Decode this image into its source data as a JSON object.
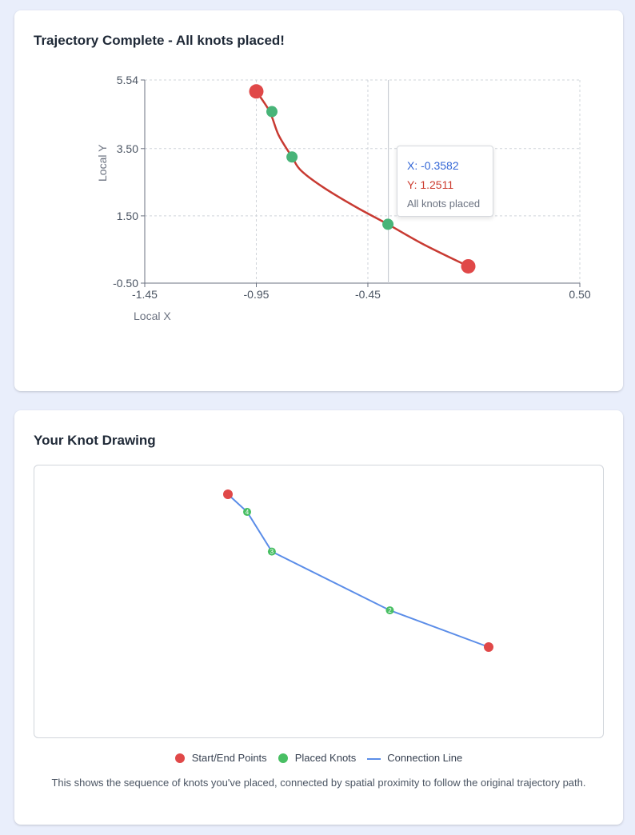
{
  "trajectory_card": {
    "title": "Trajectory Complete - All knots placed!",
    "tooltip": {
      "x_text": "X: -0.3582",
      "y_text": "Y: 1.2511",
      "note": "All knots placed"
    }
  },
  "chart_data": {
    "type": "line",
    "xlabel": "Local X",
    "ylabel": "Local Y",
    "xlim": [
      -1.45,
      0.5
    ],
    "ylim": [
      -0.5,
      5.54
    ],
    "x_ticks": [
      -1.45,
      -0.95,
      -0.45,
      0.5
    ],
    "x_tick_labels": [
      "-1.45",
      "-0.95",
      "-0.45",
      "0.50"
    ],
    "y_ticks": [
      -0.5,
      1.5,
      3.5,
      5.54
    ],
    "y_tick_labels": [
      "-0.50",
      "1.50",
      "3.50",
      "5.54"
    ],
    "grid": true,
    "trajectory": {
      "x": [
        -0.95,
        -0.89,
        -0.85,
        -0.79,
        -0.75,
        -0.65,
        -0.5,
        -0.36,
        -0.2,
        0.0
      ],
      "y": [
        5.2,
        4.6,
        3.9,
        3.25,
        2.85,
        2.35,
        1.75,
        1.25,
        0.65,
        0.0
      ]
    },
    "start_end_points": [
      {
        "x": -0.95,
        "y": 5.2
      },
      {
        "x": 0.0,
        "y": 0.0
      }
    ],
    "placed_knots": [
      {
        "x": -0.88,
        "y": 4.6
      },
      {
        "x": -0.79,
        "y": 3.25
      },
      {
        "x": -0.36,
        "y": 1.25
      }
    ],
    "crosshair_x": -0.3582,
    "colors": {
      "trajectory": "#c83a32",
      "start_end": "#e04848",
      "knot": "#48b478",
      "grid": "#cfd4da",
      "crosshair": "#c8cdd3"
    }
  },
  "drawing_card": {
    "title": "Your Knot Drawing",
    "points": [
      {
        "kind": "endpoint",
        "label": ""
      },
      {
        "kind": "knot",
        "label": "4"
      },
      {
        "kind": "knot",
        "label": "3"
      },
      {
        "kind": "knot",
        "label": "2"
      },
      {
        "kind": "endpoint",
        "label": ""
      }
    ],
    "legend": {
      "start_end": "Start/End Points",
      "placed_knots": "Placed Knots",
      "connection": "Connection Line"
    },
    "caption": "This shows the sequence of knots you've placed, connected by spatial proximity to follow the original trajectory path.",
    "colors": {
      "endpoint": "#e04848",
      "knot": "#48bf63",
      "line": "#5b8de8"
    }
  }
}
